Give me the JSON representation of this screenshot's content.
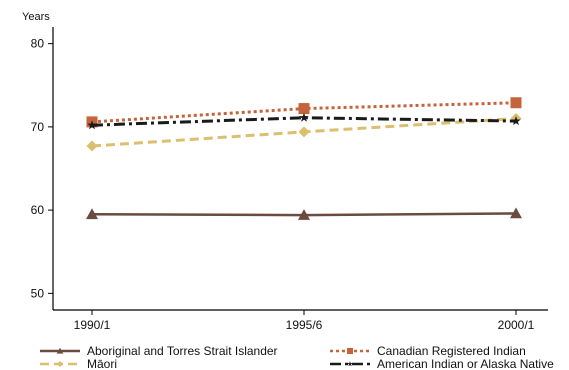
{
  "chart_data": {
    "type": "line",
    "ylabel": "Years",
    "xlabel": "",
    "title": "",
    "categories": [
      "1990/1",
      "1995/6",
      "2000/1"
    ],
    "ylim": [
      48,
      82
    ],
    "yticks": [
      50,
      60,
      70,
      80
    ],
    "grid": false,
    "legend": "bottom",
    "series": [
      {
        "name": "Aboriginal and Torres Strait Islander",
        "values": [
          59.5,
          59.4,
          59.6
        ],
        "color": "#6b4a3f",
        "dash": "solid",
        "marker": "triangle"
      },
      {
        "name": "Māori",
        "values": [
          67.7,
          69.4,
          71.0
        ],
        "color": "#dcbf6e",
        "dash": "dashed",
        "marker": "diamond"
      },
      {
        "name": "Canadian Registered Indian",
        "values": [
          70.6,
          72.2,
          72.9
        ],
        "color": "#c4643a",
        "dash": "dotted",
        "marker": "square"
      },
      {
        "name": "American Indian or Alaska Native",
        "values": [
          70.2,
          71.1,
          70.7
        ],
        "color": "#1a1a1a",
        "dash": "dashdot",
        "marker": "star"
      }
    ]
  }
}
